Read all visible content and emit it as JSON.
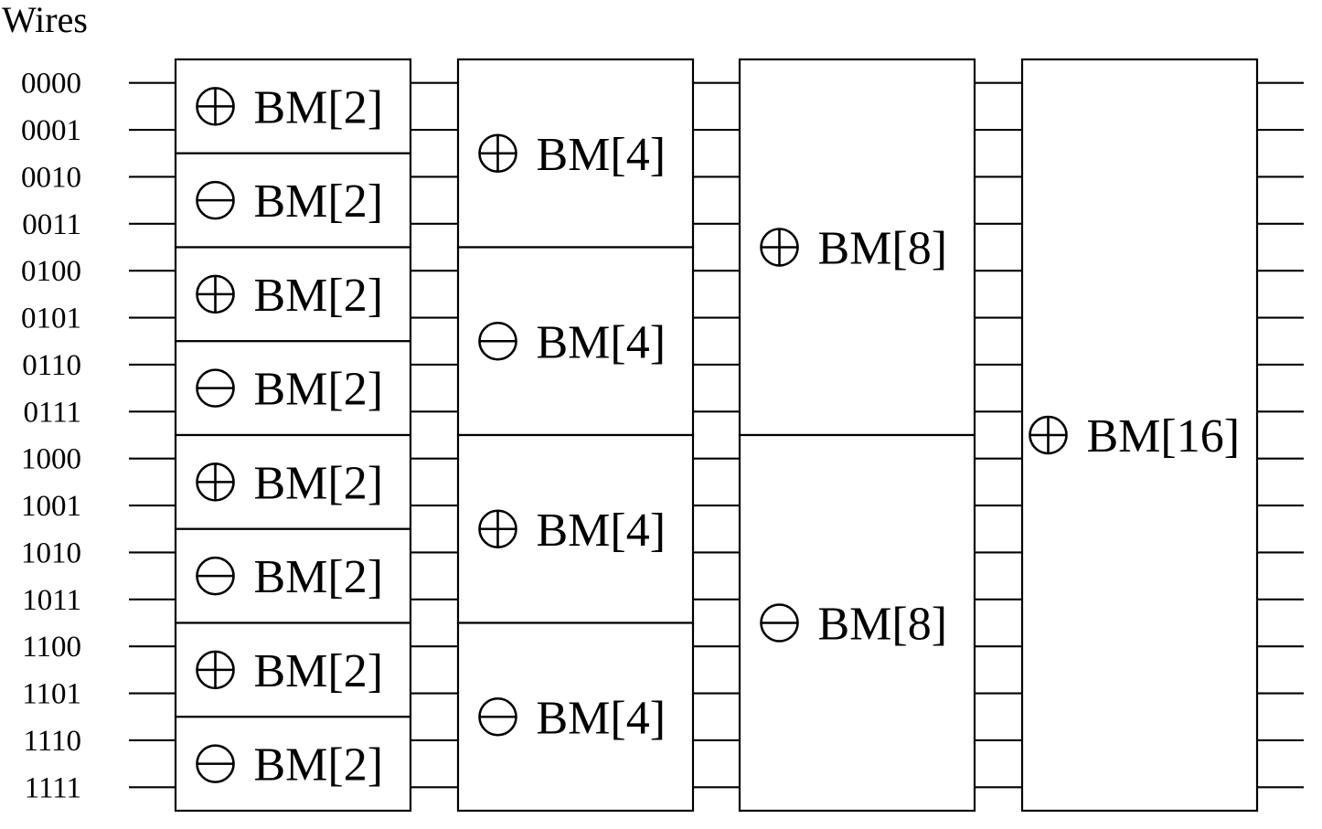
{
  "header": {
    "title": "Wires"
  },
  "wires": [
    "0000",
    "0001",
    "0010",
    "0011",
    "0100",
    "0101",
    "0110",
    "0111",
    "1000",
    "1001",
    "1010",
    "1011",
    "1100",
    "1101",
    "1110",
    "1111"
  ],
  "stages": [
    {
      "name": "bm2",
      "blocks": [
        {
          "op": "plus",
          "label": "BM[2]"
        },
        {
          "op": "minus",
          "label": "BM[2]"
        },
        {
          "op": "plus",
          "label": "BM[2]"
        },
        {
          "op": "minus",
          "label": "BM[2]"
        },
        {
          "op": "plus",
          "label": "BM[2]"
        },
        {
          "op": "minus",
          "label": "BM[2]"
        },
        {
          "op": "plus",
          "label": "BM[2]"
        },
        {
          "op": "minus",
          "label": "BM[2]"
        }
      ]
    },
    {
      "name": "bm4",
      "blocks": [
        {
          "op": "plus",
          "label": "BM[4]"
        },
        {
          "op": "minus",
          "label": "BM[4]"
        },
        {
          "op": "plus",
          "label": "BM[4]"
        },
        {
          "op": "minus",
          "label": "BM[4]"
        }
      ]
    },
    {
      "name": "bm8",
      "blocks": [
        {
          "op": "plus",
          "label": "BM[8]"
        },
        {
          "op": "minus",
          "label": "BM[8]"
        }
      ]
    },
    {
      "name": "bm16",
      "blocks": [
        {
          "op": "plus",
          "label": "BM[16]"
        }
      ]
    }
  ]
}
